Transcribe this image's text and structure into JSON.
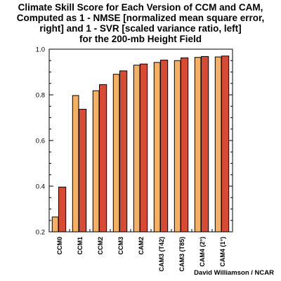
{
  "chart_data": {
    "type": "bar",
    "title_lines": [
      "Climate Skill Score for Each Version of CCM and CAM,",
      "Computed as 1 - NMSE [normalized mean square error,",
      "right] and 1 - SVR [scaled variance ratio, left]",
      "for the 200-mb Height Field"
    ],
    "categories": [
      "CCM0",
      "CCM1",
      "CCM2",
      "CCM3",
      "CAM2",
      "CAM3 (T42)",
      "CAM3 (T85)",
      "CAM4 (2°)",
      "CAM4 (1°)"
    ],
    "series": [
      {
        "values": [
          0.265,
          0.797,
          0.818,
          0.89,
          0.93,
          0.942,
          0.95,
          0.964,
          0.966
        ]
      },
      {
        "values": [
          0.396,
          0.737,
          0.845,
          0.905,
          0.935,
          0.952,
          0.962,
          0.968,
          0.97
        ]
      }
    ],
    "ylim": [
      0.2,
      1.0
    ],
    "yticks": [
      "0.2",
      "0.4",
      "0.6",
      "0.8",
      "1.0"
    ],
    "xlabel": "",
    "ylabel": "",
    "grid": false,
    "colors": {
      "left": "#f5b061",
      "right": "#d94a33",
      "edge": "#000000"
    }
  },
  "credit": "David Williamson / NCAR"
}
